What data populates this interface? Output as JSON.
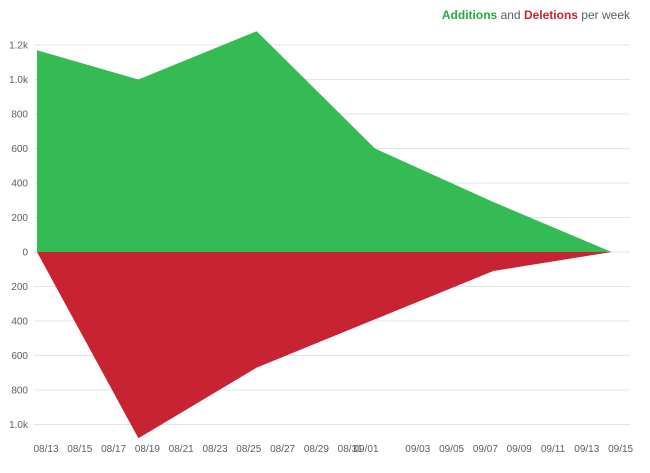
{
  "legend": {
    "additions_label": "Additions",
    "connector": "and",
    "deletions_label": "Deletions",
    "suffix": "per week"
  },
  "colors": {
    "additions": "#34bb54",
    "deletions": "#c82333",
    "grid": "#e1e4e8",
    "axis_text": "#586069"
  },
  "chart_data": {
    "type": "area",
    "title": "Additions and Deletions per week",
    "xlabel": "",
    "ylabel": "",
    "x_tick_labels": [
      "08/13",
      "08/15",
      "08/17",
      "08/19",
      "08/21",
      "08/23",
      "08/25",
      "08/27",
      "08/29",
      "08/31",
      "09/01",
      "09/03",
      "09/05",
      "09/07",
      "09/09",
      "09/11",
      "09/13",
      "09/15"
    ],
    "y_tick_labels": [
      "1.2k",
      "1.0k",
      "800",
      "600",
      "400",
      "200",
      "0",
      "200",
      "400",
      "600",
      "800",
      "1.0k"
    ],
    "y_tick_values": [
      1200,
      1000,
      800,
      600,
      400,
      200,
      0,
      -200,
      -400,
      -600,
      -800,
      -1000
    ],
    "ylim": [
      -1090,
      1210
    ],
    "x": [
      "08/13",
      "08/19",
      "08/26",
      "09/02",
      "09/09",
      "09/16"
    ],
    "series": [
      {
        "name": "Additions",
        "color": "#34bb54",
        "values": [
          1170,
          1000,
          1280,
          600,
          290,
          0
        ]
      },
      {
        "name": "Deletions",
        "color": "#c82333",
        "values": [
          0,
          -1080,
          -670,
          -390,
          -110,
          0
        ]
      }
    ],
    "grid": true,
    "legend_position": "top-right"
  }
}
